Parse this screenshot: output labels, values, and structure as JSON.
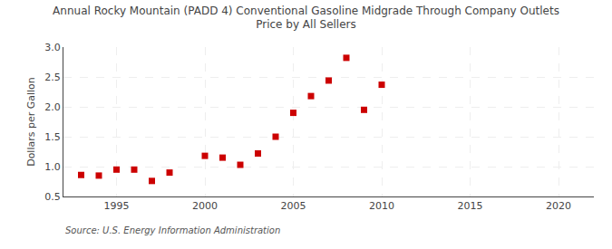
{
  "chart_data": {
    "type": "scatter",
    "title": "Annual Rocky Mountain (PADD 4) Conventional Gasoline Midgrade Through Company Outlets\nPrice by All Sellers",
    "ylabel": "Dollars per Gallon",
    "source": "Source: U.S. Energy Information Administration",
    "x": [
      1993,
      1994,
      1995,
      1996,
      1997,
      1998,
      2000,
      2001,
      2002,
      2003,
      2004,
      2005,
      2006,
      2007,
      2008,
      2009,
      2010
    ],
    "values": [
      0.86,
      0.85,
      0.95,
      0.95,
      0.76,
      0.9,
      1.18,
      1.15,
      1.03,
      1.22,
      1.5,
      1.9,
      2.18,
      2.44,
      2.82,
      1.95,
      2.37
    ],
    "color": "#cc0000",
    "marker": "square",
    "xlim": [
      1992,
      2022
    ],
    "ylim": [
      0.5,
      3.0
    ],
    "xticks": [
      1995,
      2000,
      2005,
      2010,
      2015,
      2020
    ],
    "yticks": [
      0.5,
      {
        "value": 1.0,
        "label": "1.0"
      },
      1.5,
      {
        "value": 2.0,
        "label": "2.0"
      },
      2.5,
      {
        "value": 3.0,
        "label": "3.0"
      }
    ],
    "grid": true
  }
}
